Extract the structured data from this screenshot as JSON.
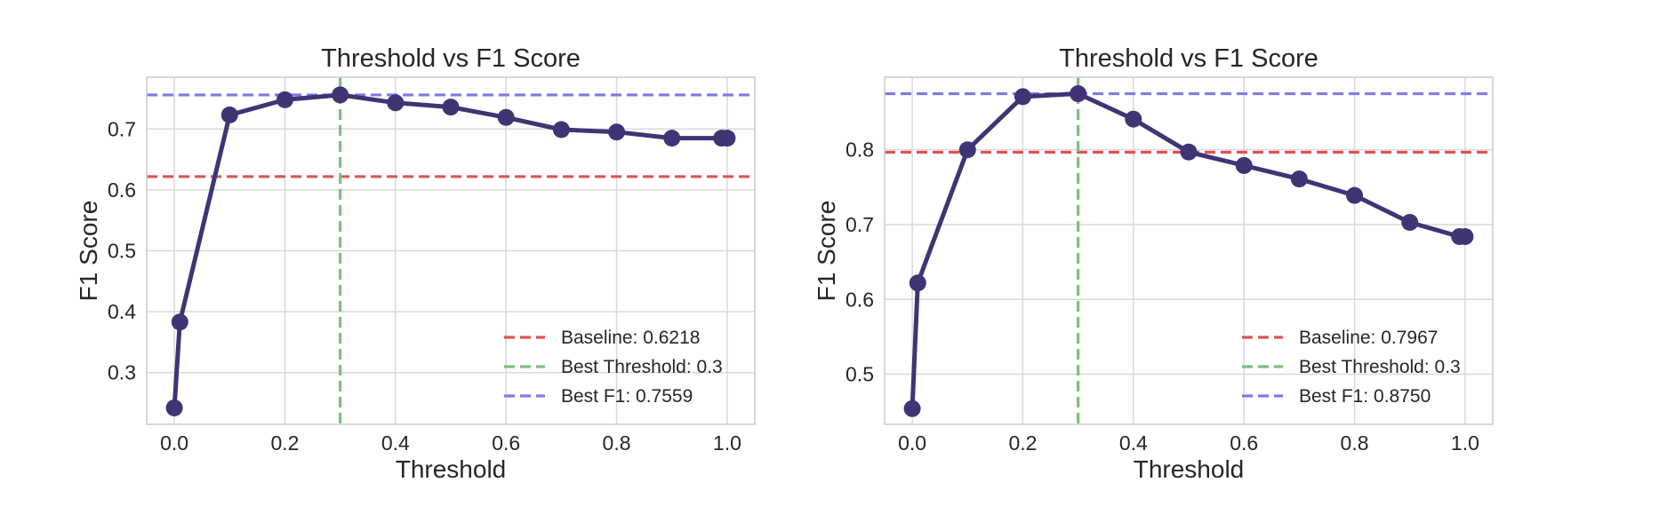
{
  "chart_data": [
    {
      "type": "line",
      "title": "Threshold vs F1 Score",
      "xlabel": "Threshold",
      "ylabel": "F1 Score",
      "xlim": [
        -0.05,
        1.05
      ],
      "ylim": [
        0.215,
        0.785
      ],
      "xticks": [
        "0.0",
        "0.2",
        "0.4",
        "0.6",
        "0.8",
        "1.0"
      ],
      "yticks": [
        "0.3",
        "0.4",
        "0.5",
        "0.6",
        "0.7"
      ],
      "grid": true,
      "series": [
        {
          "color": "#3f3474",
          "x": [
            0.0,
            0.01,
            0.1,
            0.2,
            0.3,
            0.4,
            0.5,
            0.6,
            0.7,
            0.8,
            0.9,
            0.99,
            1.0
          ],
          "y": [
            0.242,
            0.383,
            0.723,
            0.748,
            0.756,
            0.743,
            0.736,
            0.719,
            0.699,
            0.695,
            0.685,
            0.685,
            0.685
          ]
        }
      ],
      "reference_lines": [
        {
          "label": "Baseline: 0.6218",
          "orientation": "horizontal",
          "value": 0.6218,
          "color": "#dd5555",
          "style": "dashed"
        },
        {
          "label": "Best Threshold: 0.3",
          "orientation": "vertical",
          "value": 0.3,
          "color": "#7fbf7f",
          "style": "dashed"
        },
        {
          "label": "Best F1: 0.7559",
          "orientation": "horizontal",
          "value": 0.7559,
          "color": "#7b7be6",
          "style": "dashed"
        }
      ],
      "legend_position": "lower-right"
    },
    {
      "type": "line",
      "title": "Threshold vs F1 Score",
      "xlabel": "Threshold",
      "ylabel": "F1 Score",
      "xlim": [
        -0.05,
        1.05
      ],
      "ylim": [
        0.433,
        0.897
      ],
      "xticks": [
        "0.0",
        "0.2",
        "0.4",
        "0.6",
        "0.8",
        "1.0"
      ],
      "yticks": [
        "0.5",
        "0.6",
        "0.7",
        "0.8"
      ],
      "grid": true,
      "series": [
        {
          "color": "#3f3474",
          "x": [
            0.0,
            0.01,
            0.1,
            0.2,
            0.3,
            0.4,
            0.5,
            0.6,
            0.7,
            0.8,
            0.9,
            0.99,
            1.0
          ],
          "y": [
            0.454,
            0.622,
            0.8,
            0.871,
            0.875,
            0.841,
            0.797,
            0.779,
            0.761,
            0.739,
            0.703,
            0.684,
            0.684
          ]
        }
      ],
      "reference_lines": [
        {
          "label": "Baseline: 0.7967",
          "orientation": "horizontal",
          "value": 0.7967,
          "color": "#dd5555",
          "style": "dashed"
        },
        {
          "label": "Best Threshold: 0.3",
          "orientation": "vertical",
          "value": 0.3,
          "color": "#7fbf7f",
          "style": "dashed"
        },
        {
          "label": "Best F1: 0.8750",
          "orientation": "horizontal",
          "value": 0.875,
          "color": "#7b7be6",
          "style": "dashed"
        }
      ],
      "legend_position": "lower-right"
    }
  ]
}
